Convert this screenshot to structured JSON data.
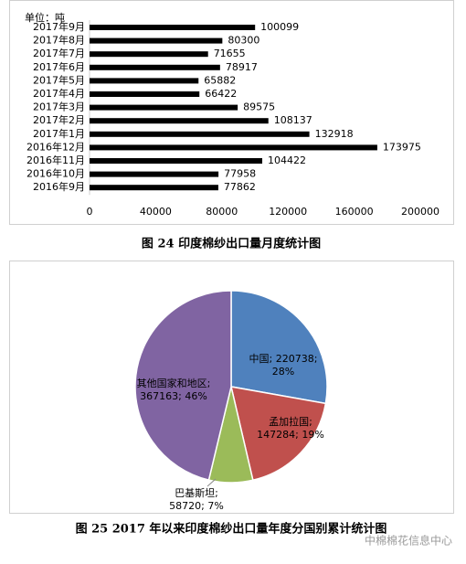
{
  "chart_data": [
    {
      "type": "bar",
      "orientation": "horizontal",
      "unit_label": "单位：吨",
      "categories": [
        "2017年9月",
        "2017年8月",
        "2017年7月",
        "2017年6月",
        "2017年5月",
        "2017年4月",
        "2017年3月",
        "2017年2月",
        "2017年1月",
        "2016年12月",
        "2016年11月",
        "2016年10月",
        "2016年9月"
      ],
      "values": [
        100099,
        80300,
        71655,
        78917,
        65882,
        66422,
        89575,
        108137,
        132918,
        173975,
        104422,
        77958,
        77862
      ],
      "color": "#000000",
      "xlim": [
        0,
        200000
      ],
      "xticks": [
        0,
        40000,
        80000,
        120000,
        160000,
        200000
      ],
      "grid": false,
      "caption": "图 24  印度棉纱出口量月度统计图"
    },
    {
      "type": "pie",
      "categories": [
        "中国",
        "孟加拉国",
        "巴基斯坦",
        "其他国家和地区"
      ],
      "values": [
        220738,
        147284,
        58720,
        367163
      ],
      "value_labels": [
        [
          "中国; 220738;",
          "28%"
        ],
        [
          "孟加拉国;",
          "147284; 19%"
        ],
        [
          "巴基斯坦;",
          "58720; 7%"
        ],
        [
          "其他国家和地区;",
          "367163; 46%"
        ]
      ],
      "colors": [
        "#4f81bd",
        "#c0504d",
        "#9bbb59",
        "#8064a2"
      ],
      "caption": "图 25 2017 年以来印度棉纱出口量年度分国别累计统计图"
    }
  ],
  "watermark": "中棉棉花信息中心"
}
